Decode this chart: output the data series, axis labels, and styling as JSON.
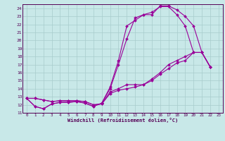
{
  "xlabel": "Windchill (Refroidissement éolien,°C)",
  "bg_color": "#c8e8e8",
  "line_color": "#990099",
  "grid_color": "#a8cccc",
  "xlim": [
    -0.5,
    23.5
  ],
  "ylim": [
    11,
    24.5
  ],
  "yticks": [
    11,
    12,
    13,
    14,
    15,
    16,
    17,
    18,
    19,
    20,
    21,
    22,
    23,
    24
  ],
  "xticks": [
    0,
    1,
    2,
    3,
    4,
    5,
    6,
    7,
    8,
    9,
    10,
    11,
    12,
    13,
    14,
    15,
    16,
    17,
    18,
    19,
    20,
    21,
    22,
    23
  ],
  "curves": [
    [
      [
        0,
        12.8
      ],
      [
        1,
        11.8
      ],
      [
        2,
        11.5
      ],
      [
        3,
        12.1
      ],
      [
        4,
        12.3
      ],
      [
        5,
        12.3
      ],
      [
        6,
        12.4
      ],
      [
        7,
        12.2
      ],
      [
        8,
        11.8
      ],
      [
        9,
        12.2
      ],
      [
        10,
        14.0
      ],
      [
        11,
        17.0
      ],
      [
        12,
        20.2
      ],
      [
        13,
        22.8
      ],
      [
        14,
        23.2
      ],
      [
        15,
        23.2
      ],
      [
        16,
        24.3
      ],
      [
        17,
        24.3
      ],
      [
        18,
        23.8
      ],
      [
        19,
        23.0
      ],
      [
        20,
        21.8
      ],
      [
        21,
        18.5
      ],
      [
        22,
        16.7
      ]
    ],
    [
      [
        0,
        12.8
      ],
      [
        1,
        11.8
      ],
      [
        2,
        11.5
      ],
      [
        3,
        12.1
      ],
      [
        4,
        12.3
      ],
      [
        5,
        12.3
      ],
      [
        6,
        12.4
      ],
      [
        7,
        12.2
      ],
      [
        8,
        11.8
      ],
      [
        9,
        12.2
      ],
      [
        10,
        14.2
      ],
      [
        11,
        17.5
      ],
      [
        12,
        21.8
      ],
      [
        13,
        22.5
      ],
      [
        14,
        23.2
      ],
      [
        15,
        23.5
      ],
      [
        16,
        24.2
      ],
      [
        17,
        24.2
      ],
      [
        18,
        23.2
      ],
      [
        19,
        21.8
      ],
      [
        20,
        18.5
      ],
      [
        21,
        18.5
      ],
      [
        22,
        16.7
      ]
    ],
    [
      [
        0,
        12.8
      ],
      [
        1,
        12.8
      ],
      [
        2,
        12.6
      ],
      [
        3,
        12.4
      ],
      [
        4,
        12.5
      ],
      [
        5,
        12.5
      ],
      [
        6,
        12.5
      ],
      [
        7,
        12.4
      ],
      [
        8,
        12.0
      ],
      [
        9,
        12.1
      ],
      [
        10,
        13.6
      ],
      [
        11,
        14.0
      ],
      [
        12,
        14.5
      ],
      [
        13,
        14.5
      ],
      [
        14,
        14.5
      ],
      [
        15,
        15.2
      ],
      [
        16,
        16.0
      ],
      [
        17,
        17.0
      ],
      [
        18,
        17.5
      ],
      [
        19,
        18.0
      ],
      [
        20,
        18.5
      ],
      [
        21,
        18.5
      ],
      [
        22,
        16.7
      ]
    ],
    [
      [
        0,
        12.8
      ],
      [
        1,
        12.8
      ],
      [
        2,
        12.6
      ],
      [
        3,
        12.4
      ],
      [
        4,
        12.5
      ],
      [
        5,
        12.5
      ],
      [
        6,
        12.5
      ],
      [
        7,
        12.4
      ],
      [
        8,
        12.0
      ],
      [
        9,
        12.1
      ],
      [
        10,
        13.4
      ],
      [
        11,
        13.8
      ],
      [
        12,
        14.0
      ],
      [
        13,
        14.2
      ],
      [
        14,
        14.5
      ],
      [
        15,
        15.0
      ],
      [
        16,
        15.8
      ],
      [
        17,
        16.5
      ],
      [
        18,
        17.2
      ],
      [
        19,
        17.5
      ],
      [
        20,
        18.5
      ],
      [
        21,
        18.5
      ],
      [
        22,
        16.7
      ]
    ]
  ]
}
